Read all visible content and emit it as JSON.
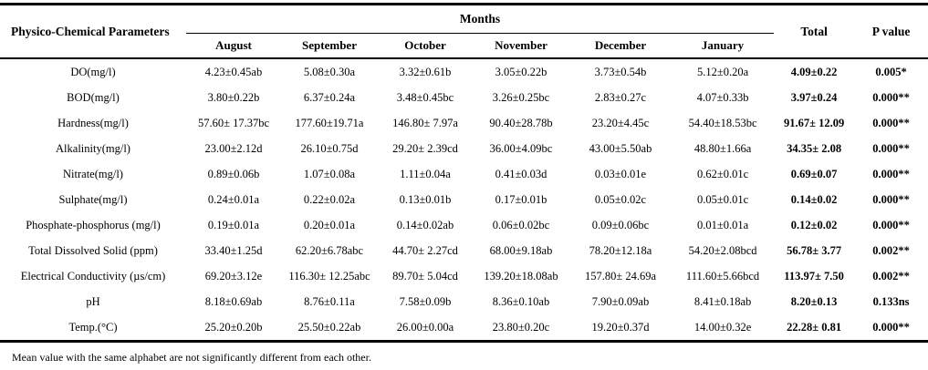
{
  "table": {
    "header": {
      "param_col": "Physico-Chemical Parameters",
      "months_group": "Months",
      "months": [
        "August",
        "September",
        "October",
        "November",
        "December",
        "January"
      ],
      "total": "Total",
      "p_value": "P value"
    },
    "rows": [
      {
        "param": "DO(mg/l)",
        "values": [
          "4.23±0.45ab",
          "5.08±0.30a",
          "3.32±0.61b",
          "3.05±0.22b",
          "3.73±0.54b",
          "5.12±0.20a"
        ],
        "total": "4.09±0.22",
        "p": "0.005*"
      },
      {
        "param": "BOD(mg/l)",
        "values": [
          "3.80±0.22b",
          "6.37±0.24a",
          "3.48±0.45bc",
          "3.26±0.25bc",
          "2.83±0.27c",
          "4.07±0.33b"
        ],
        "total": "3.97±0.24",
        "p": "0.000**"
      },
      {
        "param": "Hardness(mg/l)",
        "values": [
          "57.60± 17.37bc",
          "177.60±19.71a",
          "146.80± 7.97a",
          "90.40±28.78b",
          "23.20±4.45c",
          "54.40±18.53bc"
        ],
        "total": "91.67± 12.09",
        "p": "0.000**"
      },
      {
        "param": "Alkalinity(mg/l)",
        "values": [
          "23.00±2.12d",
          "26.10±0.75d",
          "29.20± 2.39cd",
          "36.00±4.09bc",
          "43.00±5.50ab",
          "48.80±1.66a"
        ],
        "total": "34.35± 2.08",
        "p": "0.000**"
      },
      {
        "param": "Nitrate(mg/l)",
        "values": [
          "0.89±0.06b",
          "1.07±0.08a",
          "1.11±0.04a",
          "0.41±0.03d",
          "0.03±0.01e",
          "0.62±0.01c"
        ],
        "total": "0.69±0.07",
        "p": "0.000**"
      },
      {
        "param": "Sulphate(mg/l)",
        "values": [
          "0.24±0.01a",
          "0.22±0.02a",
          "0.13±0.01b",
          "0.17±0.01b",
          "0.05±0.02c",
          "0.05±0.01c"
        ],
        "total": "0.14±0.02",
        "p": "0.000**"
      },
      {
        "param": "Phosphate-phosphorus (mg/l)",
        "values": [
          "0.19±0.01a",
          "0.20±0.01a",
          "0.14±0.02ab",
          "0.06±0.02bc",
          "0.09±0.06bc",
          "0.01±0.01a"
        ],
        "total": "0.12±0.02",
        "p": "0.000**"
      },
      {
        "param": "Total Dissolved Solid (ppm)",
        "values": [
          "33.40±1.25d",
          "62.20±6.78abc",
          "44.70± 2.27cd",
          "68.00±9.18ab",
          "78.20±12.18a",
          "54.20±2.08bcd"
        ],
        "total": "56.78± 3.77",
        "p": "0.002**"
      },
      {
        "param": "Electrical Conductivity (µs/cm)",
        "values": [
          "69.20±3.12e",
          "116.30± 12.25abc",
          "89.70± 5.04cd",
          "139.20±18.08ab",
          "157.80± 24.69a",
          "111.60±5.66bcd"
        ],
        "total": "113.97± 7.50",
        "p": "0.002**"
      },
      {
        "param": "pH",
        "values": [
          "8.18±0.69ab",
          "8.76±0.11a",
          "7.58±0.09b",
          "8.36±0.10ab",
          "7.90±0.09ab",
          "8.41±0.18ab"
        ],
        "total": "8.20±0.13",
        "p": "0.133ns"
      },
      {
        "param": "Temp.(°C)",
        "values": [
          "25.20±0.20b",
          "25.50±0.22ab",
          "26.00±0.00a",
          "23.80±0.20c",
          "19.20±0.37d",
          "14.00±0.32e"
        ],
        "total": "22.28± 0.81",
        "p": "0.000**"
      }
    ],
    "footnote": "Mean value with the same alphabet are not significantly different from each other."
  }
}
